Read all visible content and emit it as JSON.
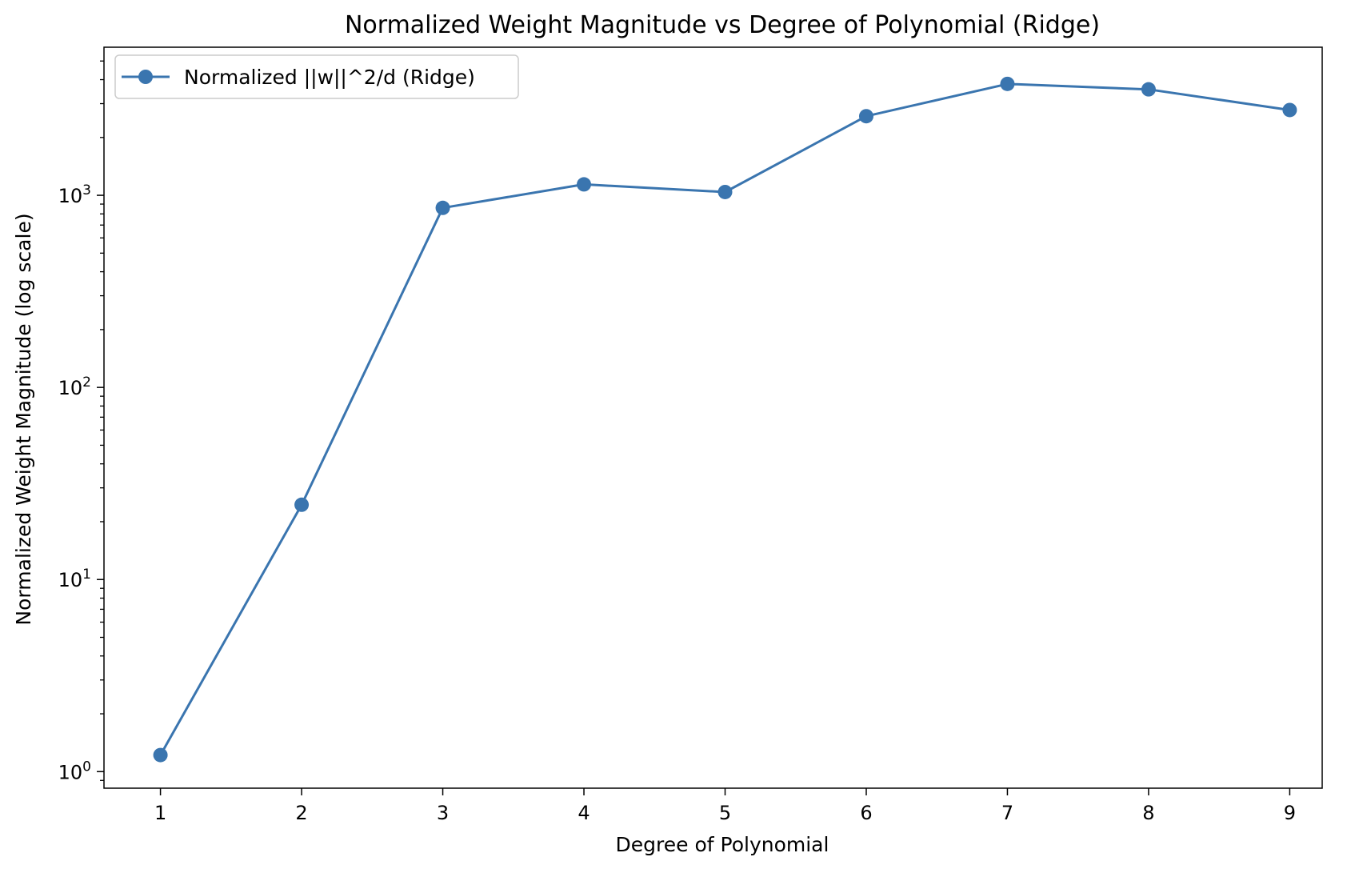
{
  "chart_data": {
    "type": "line",
    "title": "Normalized Weight Magnitude vs Degree of Polynomial (Ridge)",
    "xlabel": "Degree of Polynomial",
    "ylabel": "Normalized Weight Magnitude (log scale)",
    "x": [
      1,
      2,
      3,
      4,
      5,
      6,
      7,
      8,
      9
    ],
    "x_tick_labels": [
      "1",
      "2",
      "3",
      "4",
      "5",
      "6",
      "7",
      "8",
      "9"
    ],
    "xlim": [
      0.6,
      9.23
    ],
    "y_scale": "log",
    "ylim": [
      0.82,
      5900
    ],
    "y_ticks": [
      {
        "value": 1,
        "base": "10",
        "exp": "0"
      },
      {
        "value": 10,
        "base": "10",
        "exp": "1"
      },
      {
        "value": 100,
        "base": "10",
        "exp": "2"
      },
      {
        "value": 1000,
        "base": "10",
        "exp": "3"
      }
    ],
    "grid": false,
    "legend_position": "upper left",
    "series": [
      {
        "name": "Normalized ||w||^2/d (Ridge)",
        "color": "#3a75af",
        "marker": "circle",
        "values": [
          1.22,
          24.5,
          860,
          1140,
          1040,
          2580,
          3800,
          3560,
          2780
        ]
      }
    ]
  }
}
